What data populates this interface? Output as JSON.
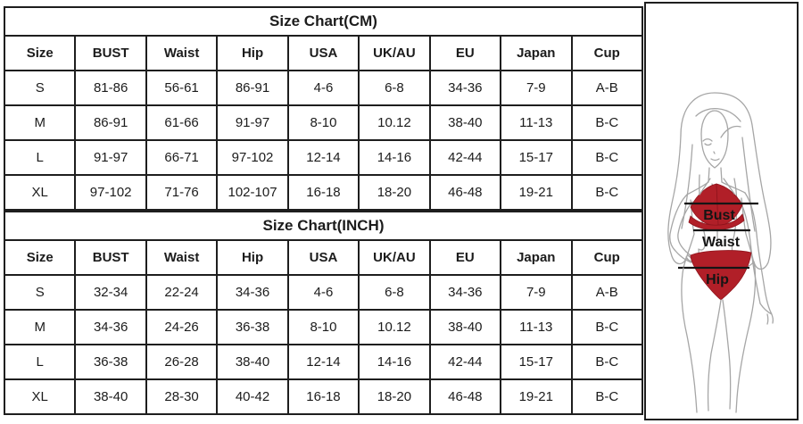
{
  "page": {
    "background": "#ffffff",
    "border_color": "#1e1e1e",
    "text_color": "#1c1c1c"
  },
  "chart_data": [
    {
      "type": "table",
      "title": "Size Chart(CM)",
      "columns": [
        "Size",
        "BUST",
        "Waist",
        "Hip",
        "USA",
        "UK/AU",
        "EU",
        "Japan",
        "Cup"
      ],
      "rows": [
        [
          "S",
          "81-86",
          "56-61",
          "86-91",
          "4-6",
          "6-8",
          "34-36",
          "7-9",
          "A-B"
        ],
        [
          "M",
          "86-91",
          "61-66",
          "91-97",
          "8-10",
          "10.12",
          "38-40",
          "11-13",
          "B-C"
        ],
        [
          "L",
          "91-97",
          "66-71",
          "97-102",
          "12-14",
          "14-16",
          "42-44",
          "15-17",
          "B-C"
        ],
        [
          "XL",
          "97-102",
          "71-76",
          "102-107",
          "16-18",
          "18-20",
          "46-48",
          "19-21",
          "B-C"
        ]
      ]
    },
    {
      "type": "table",
      "title": "Size Chart(INCH)",
      "columns": [
        "Size",
        "BUST",
        "Waist",
        "Hip",
        "USA",
        "UK/AU",
        "EU",
        "Japan",
        "Cup"
      ],
      "rows": [
        [
          "S",
          "32-34",
          "22-24",
          "34-36",
          "4-6",
          "6-8",
          "34-36",
          "7-9",
          "A-B"
        ],
        [
          "M",
          "34-36",
          "24-26",
          "36-38",
          "8-10",
          "10.12",
          "38-40",
          "11-13",
          "B-C"
        ],
        [
          "L",
          "36-38",
          "26-28",
          "38-40",
          "12-14",
          "14-16",
          "42-44",
          "15-17",
          "B-C"
        ],
        [
          "XL",
          "38-40",
          "28-30",
          "40-42",
          "16-18",
          "18-20",
          "46-48",
          "19-21",
          "B-C"
        ]
      ]
    }
  ],
  "figure": {
    "labels": {
      "bust": "Bust",
      "waist": "Waist",
      "hip": "Hip"
    },
    "bikini_color": "#b11f28",
    "outline_color": "#a6a6a6",
    "measure_line_color": "#151515"
  }
}
